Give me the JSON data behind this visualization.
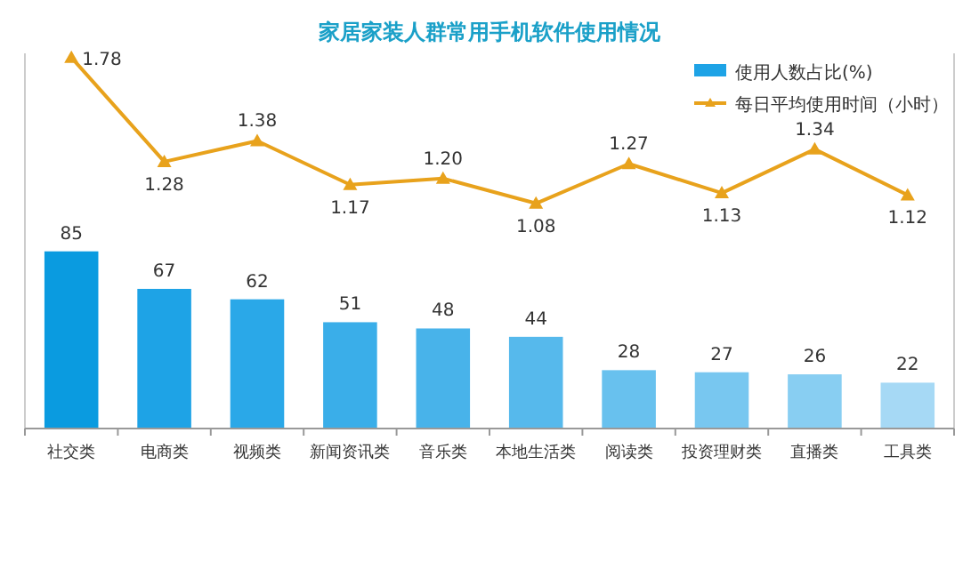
{
  "chart_data": {
    "type": "bar",
    "title": "家居家装人群常用手机软件使用情况",
    "categories": [
      "社交类",
      "电商类",
      "视频类",
      "新闻资讯类",
      "音乐类",
      "本地生活类",
      "阅读类",
      "投资理财类",
      "直播类",
      "工具类"
    ],
    "series": [
      {
        "name": "使用人数占比(%)",
        "color": "#1ea3e6",
        "colors": [
          "#0a9be0",
          "#1ea3e6",
          "#2aa8e8",
          "#3aaee9",
          "#48b3ea",
          "#56b9ec",
          "#68c1ee",
          "#78c7f0",
          "#88cef2",
          "#a6d9f5"
        ],
        "values": [
          85,
          67,
          62,
          51,
          48,
          44,
          28,
          27,
          26,
          22
        ]
      },
      {
        "name": "每日平均使用时间（小时）",
        "type": "line",
        "axis": "y2",
        "color": "#e8a21c",
        "values": [
          1.78,
          1.28,
          1.38,
          1.17,
          1.2,
          1.08,
          1.27,
          1.13,
          1.34,
          1.12
        ],
        "value_labels": [
          "1.78",
          "1.28",
          "1.38",
          "1.17",
          "1.20",
          "1.08",
          "1.27",
          "1.13",
          "1.34",
          "1.12"
        ]
      }
    ],
    "ylim": [
      0,
      180
    ],
    "y2lim": [
      0,
      1.8
    ],
    "tick_labels": "x",
    "data_labels": true,
    "legend": "top right",
    "marker": "triangle"
  }
}
